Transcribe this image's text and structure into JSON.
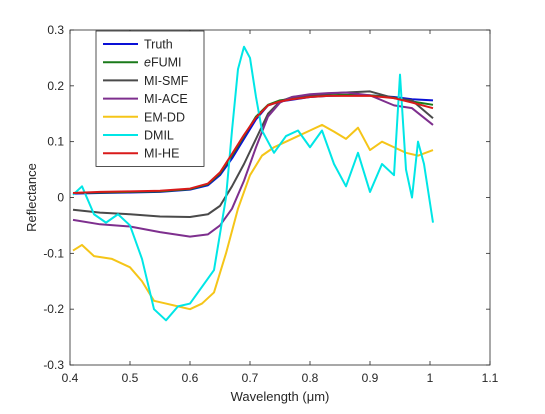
{
  "chart_data": {
    "type": "line",
    "title": "",
    "xlabel": "Wavelength (μm)",
    "ylabel": "Reflectance",
    "xlim": [
      0.4,
      1.1
    ],
    "ylim": [
      -0.3,
      0.3
    ],
    "xticks": [
      "0.4",
      "0.5",
      "0.6",
      "0.7",
      "0.8",
      "0.9",
      "1",
      "1.1"
    ],
    "yticks": [
      "-0.3",
      "-0.2",
      "-0.1",
      "0",
      "0.1",
      "0.2",
      "0.3"
    ],
    "grid": false,
    "legend_position": "top-left",
    "series": [
      {
        "name": "Truth",
        "color": "#0a10d6",
        "points": [
          [
            0.405,
            0.007
          ],
          [
            0.45,
            0.008
          ],
          [
            0.5,
            0.009
          ],
          [
            0.55,
            0.01
          ],
          [
            0.6,
            0.014
          ],
          [
            0.63,
            0.022
          ],
          [
            0.65,
            0.04
          ],
          [
            0.67,
            0.07
          ],
          [
            0.69,
            0.105
          ],
          [
            0.71,
            0.14
          ],
          [
            0.73,
            0.165
          ],
          [
            0.75,
            0.172
          ],
          [
            0.77,
            0.175
          ],
          [
            0.8,
            0.18
          ],
          [
            0.83,
            0.182
          ],
          [
            0.86,
            0.183
          ],
          [
            0.9,
            0.183
          ],
          [
            0.94,
            0.18
          ],
          [
            0.97,
            0.176
          ],
          [
            1.005,
            0.174
          ]
        ]
      },
      {
        "name": "eFUMI",
        "color": "#1a7a1a",
        "points": [
          [
            0.405,
            0.008
          ],
          [
            0.45,
            0.009
          ],
          [
            0.5,
            0.01
          ],
          [
            0.55,
            0.011
          ],
          [
            0.6,
            0.015
          ],
          [
            0.63,
            0.024
          ],
          [
            0.65,
            0.043
          ],
          [
            0.67,
            0.075
          ],
          [
            0.69,
            0.11
          ],
          [
            0.71,
            0.145
          ],
          [
            0.73,
            0.166
          ],
          [
            0.75,
            0.174
          ],
          [
            0.77,
            0.177
          ],
          [
            0.8,
            0.181
          ],
          [
            0.83,
            0.183
          ],
          [
            0.86,
            0.184
          ],
          [
            0.9,
            0.183
          ],
          [
            0.94,
            0.179
          ],
          [
            0.97,
            0.172
          ],
          [
            1.005,
            0.166
          ]
        ]
      },
      {
        "name": "MI-SMF",
        "color": "#4a4a4a",
        "points": [
          [
            0.405,
            -0.022
          ],
          [
            0.45,
            -0.027
          ],
          [
            0.5,
            -0.03
          ],
          [
            0.55,
            -0.034
          ],
          [
            0.6,
            -0.035
          ],
          [
            0.63,
            -0.03
          ],
          [
            0.65,
            -0.015
          ],
          [
            0.67,
            0.02
          ],
          [
            0.69,
            0.06
          ],
          [
            0.71,
            0.105
          ],
          [
            0.73,
            0.15
          ],
          [
            0.75,
            0.172
          ],
          [
            0.77,
            0.18
          ],
          [
            0.8,
            0.183
          ],
          [
            0.83,
            0.186
          ],
          [
            0.86,
            0.188
          ],
          [
            0.9,
            0.19
          ],
          [
            0.94,
            0.178
          ],
          [
            0.97,
            0.174
          ],
          [
            1.005,
            0.142
          ]
        ]
      },
      {
        "name": "MI-ACE",
        "color": "#7e2f8e",
        "points": [
          [
            0.405,
            -0.04
          ],
          [
            0.45,
            -0.048
          ],
          [
            0.5,
            -0.052
          ],
          [
            0.55,
            -0.062
          ],
          [
            0.6,
            -0.07
          ],
          [
            0.63,
            -0.066
          ],
          [
            0.65,
            -0.05
          ],
          [
            0.67,
            -0.02
          ],
          [
            0.69,
            0.03
          ],
          [
            0.71,
            0.09
          ],
          [
            0.73,
            0.145
          ],
          [
            0.75,
            0.17
          ],
          [
            0.77,
            0.18
          ],
          [
            0.8,
            0.185
          ],
          [
            0.83,
            0.187
          ],
          [
            0.86,
            0.188
          ],
          [
            0.9,
            0.183
          ],
          [
            0.94,
            0.165
          ],
          [
            0.97,
            0.16
          ],
          [
            1.005,
            0.13
          ]
        ]
      },
      {
        "name": "EM-DD",
        "color": "#f5c518",
        "points": [
          [
            0.405,
            -0.095
          ],
          [
            0.42,
            -0.085
          ],
          [
            0.44,
            -0.105
          ],
          [
            0.47,
            -0.11
          ],
          [
            0.5,
            -0.125
          ],
          [
            0.52,
            -0.15
          ],
          [
            0.54,
            -0.185
          ],
          [
            0.56,
            -0.19
          ],
          [
            0.58,
            -0.195
          ],
          [
            0.6,
            -0.2
          ],
          [
            0.62,
            -0.19
          ],
          [
            0.64,
            -0.17
          ],
          [
            0.66,
            -0.1
          ],
          [
            0.68,
            -0.02
          ],
          [
            0.7,
            0.04
          ],
          [
            0.72,
            0.075
          ],
          [
            0.74,
            0.09
          ],
          [
            0.76,
            0.1
          ],
          [
            0.78,
            0.11
          ],
          [
            0.8,
            0.12
          ],
          [
            0.82,
            0.13
          ],
          [
            0.84,
            0.118
          ],
          [
            0.86,
            0.105
          ],
          [
            0.88,
            0.125
          ],
          [
            0.9,
            0.085
          ],
          [
            0.92,
            0.1
          ],
          [
            0.94,
            0.09
          ],
          [
            0.96,
            0.08
          ],
          [
            0.98,
            0.075
          ],
          [
            1.005,
            0.085
          ]
        ]
      },
      {
        "name": "DMIL",
        "color": "#00e6e6",
        "points": [
          [
            0.405,
            0.005
          ],
          [
            0.42,
            0.02
          ],
          [
            0.44,
            -0.03
          ],
          [
            0.46,
            -0.045
          ],
          [
            0.48,
            -0.03
          ],
          [
            0.5,
            -0.05
          ],
          [
            0.52,
            -0.11
          ],
          [
            0.54,
            -0.2
          ],
          [
            0.56,
            -0.22
          ],
          [
            0.58,
            -0.195
          ],
          [
            0.6,
            -0.19
          ],
          [
            0.62,
            -0.16
          ],
          [
            0.64,
            -0.13
          ],
          [
            0.66,
            0.0
          ],
          [
            0.67,
            0.12
          ],
          [
            0.68,
            0.23
          ],
          [
            0.69,
            0.27
          ],
          [
            0.7,
            0.25
          ],
          [
            0.71,
            0.18
          ],
          [
            0.72,
            0.12
          ],
          [
            0.74,
            0.08
          ],
          [
            0.76,
            0.11
          ],
          [
            0.78,
            0.12
          ],
          [
            0.8,
            0.09
          ],
          [
            0.82,
            0.12
          ],
          [
            0.84,
            0.06
          ],
          [
            0.86,
            0.02
          ],
          [
            0.88,
            0.08
          ],
          [
            0.9,
            0.01
          ],
          [
            0.92,
            0.06
          ],
          [
            0.94,
            0.04
          ],
          [
            0.95,
            0.22
          ],
          [
            0.96,
            0.05
          ],
          [
            0.97,
            0.0
          ],
          [
            0.98,
            0.1
          ],
          [
            0.99,
            0.06
          ],
          [
            1.005,
            -0.045
          ]
        ]
      },
      {
        "name": "MI-HE",
        "color": "#d91a1a",
        "points": [
          [
            0.405,
            0.008
          ],
          [
            0.45,
            0.01
          ],
          [
            0.5,
            0.011
          ],
          [
            0.55,
            0.012
          ],
          [
            0.6,
            0.016
          ],
          [
            0.63,
            0.025
          ],
          [
            0.65,
            0.045
          ],
          [
            0.67,
            0.078
          ],
          [
            0.69,
            0.112
          ],
          [
            0.71,
            0.143
          ],
          [
            0.73,
            0.165
          ],
          [
            0.75,
            0.172
          ],
          [
            0.77,
            0.176
          ],
          [
            0.8,
            0.18
          ],
          [
            0.83,
            0.182
          ],
          [
            0.86,
            0.182
          ],
          [
            0.9,
            0.182
          ],
          [
            0.94,
            0.178
          ],
          [
            0.97,
            0.17
          ],
          [
            1.005,
            0.16
          ]
        ]
      }
    ]
  }
}
